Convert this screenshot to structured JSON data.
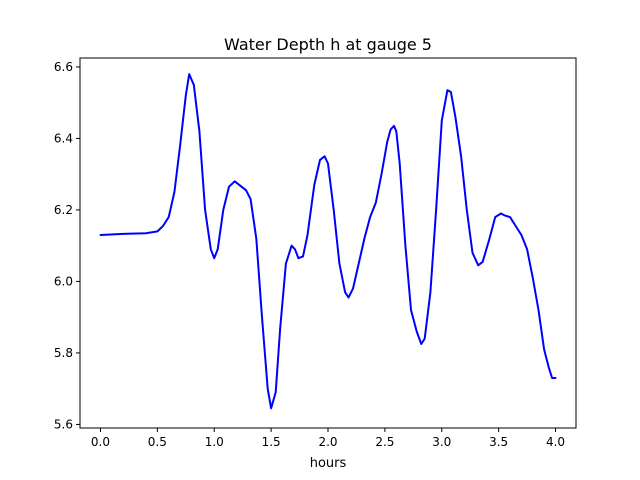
{
  "figure": {
    "title": "Water Depth h at gauge 5",
    "xlabel": "hours"
  },
  "chart_data": {
    "type": "line",
    "title": "Water Depth h at gauge 5",
    "xlabel": "hours",
    "ylabel": "",
    "xlim": [
      -0.18,
      4.18
    ],
    "ylim": [
      5.59,
      6.625
    ],
    "xticks": [
      0.0,
      0.5,
      1.0,
      1.5,
      2.0,
      2.5,
      3.0,
      3.5,
      4.0
    ],
    "xtick_labels": [
      "0.0",
      "0.5",
      "1.0",
      "1.5",
      "2.0",
      "2.5",
      "3.0",
      "3.5",
      "4.0"
    ],
    "yticks": [
      5.6,
      5.8,
      6.0,
      6.2,
      6.4,
      6.6
    ],
    "ytick_labels": [
      "5.6",
      "5.8",
      "6.0",
      "6.2",
      "6.4",
      "6.6"
    ],
    "grid": false,
    "series": [
      {
        "color": "#0000ff",
        "x": [
          0.0,
          0.2,
          0.4,
          0.5,
          0.55,
          0.6,
          0.65,
          0.7,
          0.75,
          0.78,
          0.82,
          0.87,
          0.92,
          0.97,
          1.0,
          1.03,
          1.08,
          1.13,
          1.18,
          1.22,
          1.28,
          1.32,
          1.37,
          1.42,
          1.47,
          1.5,
          1.54,
          1.58,
          1.63,
          1.68,
          1.71,
          1.74,
          1.78,
          1.82,
          1.88,
          1.93,
          1.97,
          2.0,
          2.05,
          2.1,
          2.15,
          2.18,
          2.22,
          2.27,
          2.32,
          2.37,
          2.42,
          2.47,
          2.52,
          2.55,
          2.58,
          2.6,
          2.63,
          2.68,
          2.73,
          2.78,
          2.82,
          2.85,
          2.9,
          2.95,
          3.0,
          3.05,
          3.08,
          3.12,
          3.17,
          3.22,
          3.27,
          3.32,
          3.36,
          3.42,
          3.47,
          3.52,
          3.55,
          3.6,
          3.65,
          3.7,
          3.75,
          3.8,
          3.85,
          3.9,
          3.94,
          3.97,
          4.0
        ],
        "y": [
          6.13,
          6.133,
          6.135,
          6.14,
          6.155,
          6.18,
          6.25,
          6.38,
          6.52,
          6.58,
          6.55,
          6.42,
          6.2,
          6.09,
          6.065,
          6.09,
          6.2,
          6.265,
          6.28,
          6.27,
          6.255,
          6.23,
          6.12,
          5.9,
          5.7,
          5.645,
          5.69,
          5.87,
          6.05,
          6.1,
          6.09,
          6.065,
          6.07,
          6.13,
          6.27,
          6.34,
          6.35,
          6.33,
          6.2,
          6.05,
          5.97,
          5.955,
          5.98,
          6.05,
          6.12,
          6.18,
          6.22,
          6.3,
          6.39,
          6.425,
          6.435,
          6.42,
          6.33,
          6.1,
          5.92,
          5.86,
          5.825,
          5.84,
          5.97,
          6.2,
          6.45,
          6.535,
          6.53,
          6.46,
          6.35,
          6.2,
          6.08,
          6.045,
          6.055,
          6.12,
          6.18,
          6.19,
          6.185,
          6.18,
          6.155,
          6.13,
          6.09,
          6.01,
          5.92,
          5.81,
          5.76,
          5.73,
          5.73
        ]
      }
    ]
  }
}
